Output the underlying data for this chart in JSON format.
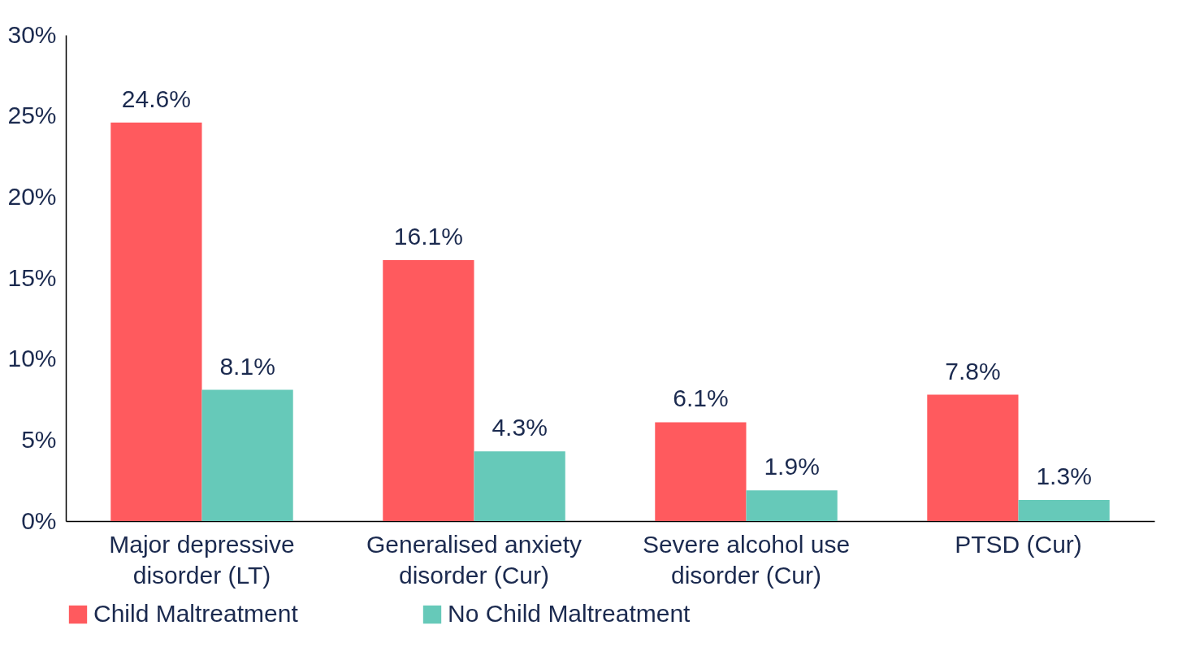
{
  "chart_data": {
    "type": "bar",
    "categories": [
      "Major depressive disorder (LT)",
      "Generalised anxiety disorder (Cur)",
      "Severe alcohol use disorder (Cur)",
      "PTSD (Cur)"
    ],
    "series": [
      {
        "name": "Child Maltreatment",
        "color": "#ff5a5e",
        "values": [
          24.6,
          16.1,
          6.1,
          7.8
        ],
        "value_labels": [
          "24.6%",
          "16.1%",
          "6.1%",
          "7.8%"
        ]
      },
      {
        "name": "No Child Maltreatment",
        "color": "#66c9b9",
        "values": [
          8.1,
          4.3,
          1.9,
          1.3
        ],
        "value_labels": [
          "8.1%",
          "4.3%",
          "1.9%",
          "1.3%"
        ]
      }
    ],
    "ylim": [
      0,
      30
    ],
    "yticks": [
      {
        "value": 0,
        "label": "0%"
      },
      {
        "value": 5,
        "label": "5%"
      },
      {
        "value": 10,
        "label": "10%"
      },
      {
        "value": 15,
        "label": "15%"
      },
      {
        "value": 20,
        "label": "20%"
      },
      {
        "value": 25,
        "label": "25%"
      },
      {
        "value": 30,
        "label": "30%"
      }
    ],
    "legend": "bottom"
  }
}
